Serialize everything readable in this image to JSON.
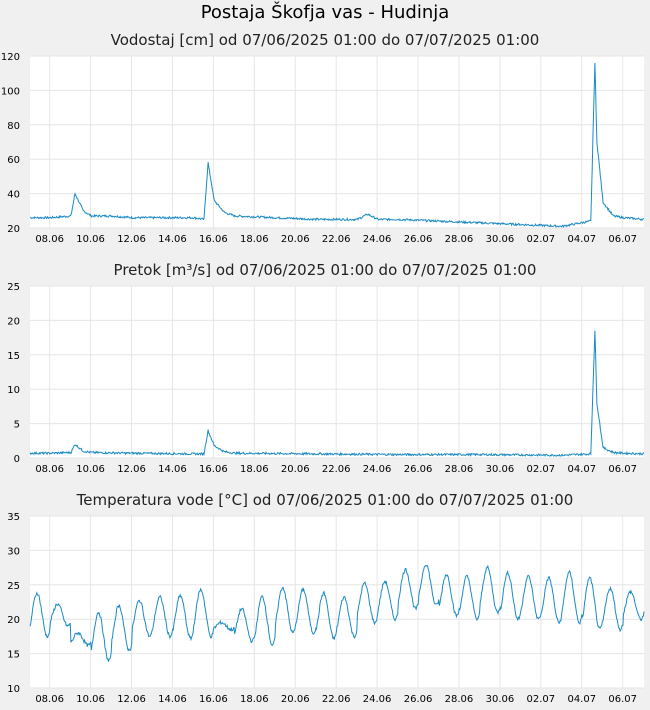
{
  "page": {
    "title": "Postaja Škofja vas - Hudinja"
  },
  "colors": {
    "line": "#1a8ac4",
    "plot_bg": "#ffffff",
    "page_bg": "#f0f0f0"
  },
  "chart_data": [
    {
      "type": "line",
      "title": "Vodostaj [cm] od 07/06/2025 01:00 do 07/07/2025 01:00",
      "xlabel": "",
      "ylabel": "",
      "xlim": [
        "07.06 01:00",
        "07.07 01:00"
      ],
      "ylim": [
        20,
        120
      ],
      "y_ticks": [
        "20",
        "40",
        "60",
        "80",
        "100",
        "120"
      ],
      "x_ticks": [
        "08.06",
        "10.06",
        "12.06",
        "14.06",
        "16.06",
        "18.06",
        "20.06",
        "22.06",
        "24.06",
        "26.06",
        "28.06",
        "30.06",
        "02.07",
        "04.07",
        "06.07"
      ],
      "grid": true,
      "series": [
        {
          "x": [
            0,
            1,
            2,
            2.2,
            2.6,
            3,
            4,
            5,
            6,
            7,
            8,
            8.5,
            8.7,
            9,
            9.5,
            10,
            12,
            14,
            16,
            16.5,
            17,
            18,
            20,
            22,
            24,
            26,
            27.4,
            27.6,
            27.7,
            28,
            28.5,
            29,
            30
          ],
          "y": [
            26,
            26,
            27,
            40,
            30,
            27,
            27,
            26,
            26,
            26,
            26,
            25,
            58,
            36,
            29,
            27,
            26,
            25,
            25,
            28,
            25,
            25,
            24,
            23,
            22,
            21,
            24,
            116,
            70,
            35,
            27,
            26,
            25
          ]
        }
      ]
    },
    {
      "type": "line",
      "title": "Pretok [m³/s] od 07/06/2025 01:00 do 07/07/2025 01:00",
      "xlabel": "",
      "ylabel": "",
      "xlim": [
        "07.06 01:00",
        "07.07 01:00"
      ],
      "ylim": [
        0,
        25
      ],
      "y_ticks": [
        "0",
        "5",
        "10",
        "15",
        "20",
        "25"
      ],
      "x_ticks": [
        "08.06",
        "10.06",
        "12.06",
        "14.06",
        "16.06",
        "18.06",
        "20.06",
        "22.06",
        "24.06",
        "26.06",
        "28.06",
        "30.06",
        "02.07",
        "04.07",
        "06.07"
      ],
      "grid": true,
      "series": [
        {
          "x": [
            0,
            1,
            2,
            2.2,
            2.6,
            3,
            5,
            8,
            8.5,
            8.7,
            9,
            9.5,
            10,
            14,
            18,
            22,
            26,
            27.4,
            27.6,
            27.7,
            28,
            28.5,
            29,
            30
          ],
          "y": [
            0.7,
            0.7,
            0.8,
            2.0,
            1.0,
            0.8,
            0.7,
            0.6,
            0.6,
            4.0,
            1.8,
            0.9,
            0.7,
            0.6,
            0.5,
            0.5,
            0.4,
            0.6,
            18.5,
            8,
            1.5,
            0.8,
            0.7,
            0.6
          ]
        }
      ]
    },
    {
      "type": "line",
      "title": "Temperatura vode [°C] od 07/06/2025 01:00 do 07/07/2025 01:00",
      "xlabel": "",
      "ylabel": "",
      "xlim": [
        "07.06 01:00",
        "07.07 01:00"
      ],
      "ylim": [
        10,
        35
      ],
      "y_ticks": [
        "10",
        "15",
        "20",
        "25",
        "30",
        "35"
      ],
      "x_ticks": [
        "08.06",
        "10.06",
        "12.06",
        "14.06",
        "16.06",
        "18.06",
        "20.06",
        "22.06",
        "24.06",
        "26.06",
        "28.06",
        "30.06",
        "02.07",
        "04.07",
        "06.07"
      ],
      "grid": true,
      "series": [
        {
          "daily_max": [
            23.8,
            22.2,
            18.0,
            21.0,
            22.0,
            22.7,
            23.2,
            23.4,
            24.3,
            19.5,
            21.5,
            23.3,
            24.6,
            24.3,
            23.8,
            23.2,
            25.2,
            25.5,
            27.2,
            28.0,
            26.5,
            26.2,
            27.5,
            26.7,
            26.2,
            26.0,
            26.8,
            26.0,
            24.5,
            24.0
          ],
          "daily_min": [
            17.5,
            19.0,
            16.2,
            14.0,
            15.5,
            17.5,
            17.5,
            17.2,
            17.5,
            18.5,
            16.8,
            16.2,
            18.0,
            18.0,
            17.2,
            17.5,
            19.5,
            20.0,
            21.5,
            22.0,
            20.5,
            20.0,
            21.0,
            20.0,
            20.0,
            19.5,
            19.5,
            18.5,
            18.5,
            20.0
          ]
        }
      ]
    }
  ]
}
